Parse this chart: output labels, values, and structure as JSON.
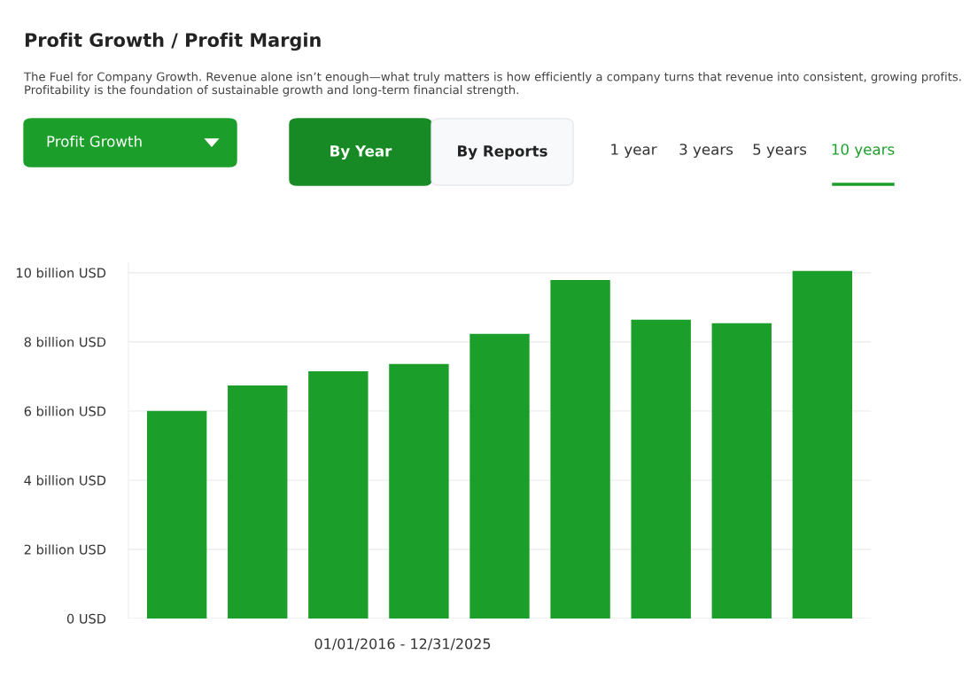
{
  "chart_data": {
    "type": "bar",
    "title": "Profit Growth / Profit Margin",
    "subtitle": "The Fuel for Company Growth. Revenue alone isn’t enough—what truly matters is how efficiently a company turns that revenue into consistent, growing profits. Profitability is the foundation of sustainable growth and long-term financial strength.",
    "annotations": [
      "Profit Growth",
      "By Year",
      "By Reports",
      "1 year",
      "3 years",
      "5 years",
      "10 years"
    ],
    "xlabel": "01/01/2016 - 12/31/2025",
    "categories": [
      null,
      null,
      null,
      null,
      null,
      null,
      null,
      null,
      null
    ],
    "values": [
      6.0,
      6.74,
      7.15,
      7.36,
      8.23,
      9.79,
      8.64,
      8.54,
      10.05
    ],
    "color": "#1c9e2a",
    "ylim": [
      0,
      10.3
    ],
    "yticks": [
      {
        "value": 0,
        "label": "0 USD"
      },
      {
        "value": 2,
        "label": "2 billion USD"
      },
      {
        "value": 4,
        "label": "4 billion USD"
      },
      {
        "value": 6,
        "label": "6 billion USD"
      },
      {
        "value": 8,
        "label": "8 billion USD"
      },
      {
        "value": 10,
        "label": "10 billion USD"
      }
    ],
    "grid": "y",
    "legend": false
  }
}
